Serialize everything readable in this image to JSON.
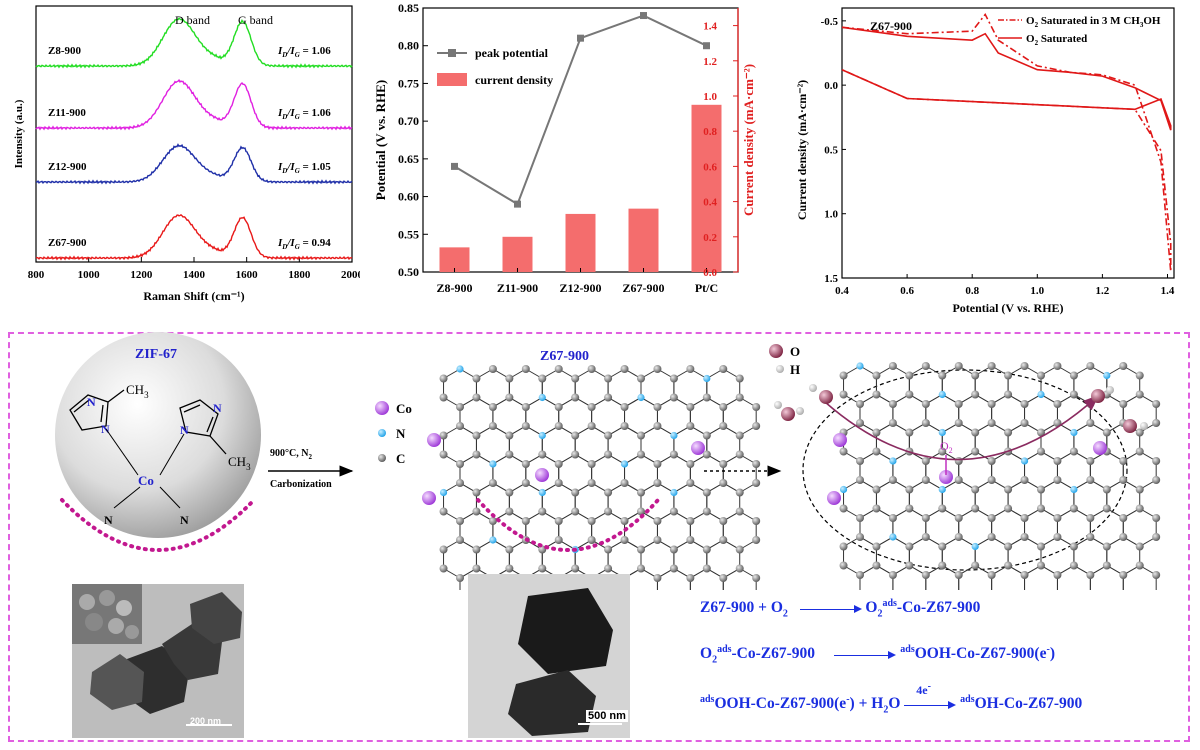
{
  "raman": {
    "xlabel": "Raman Shift  (cm⁻¹)",
    "ylabel": "Intensity  (a.u.)",
    "x_ticks": [
      "800",
      "1000",
      "1200",
      "1400",
      "1600",
      "1800",
      "2000"
    ],
    "d_band": "D band",
    "g_band": "G band",
    "samples": [
      {
        "name": "Z8-900",
        "ratio": "= 1.06",
        "color": "#22dd22"
      },
      {
        "name": "Z11-900",
        "ratio": "= 1.06",
        "color": "#e020e0"
      },
      {
        "name": "Z12-900",
        "ratio": "= 1.05",
        "color": "#1f2fa8"
      },
      {
        "name": "Z67-900",
        "ratio": "= 0.94",
        "color": "#e81818"
      }
    ],
    "ratio_label_main": "I",
    "ratio_label_d": "D",
    "ratio_label_sep": "/I",
    "ratio_label_g": "G"
  },
  "chart_data": [
    {
      "type": "bar",
      "title": "",
      "categories": [
        "Z8-900",
        "Z11-900",
        "Z12-900",
        "Z67-900",
        "Pt/C"
      ],
      "series": [
        {
          "name": "peak potential",
          "type": "line",
          "axis": "left",
          "values": [
            0.64,
            0.59,
            0.81,
            0.84,
            0.8
          ]
        },
        {
          "name": "current density",
          "type": "bar",
          "axis": "right",
          "values": [
            0.14,
            0.2,
            0.33,
            0.36,
            0.95
          ]
        }
      ],
      "ylabel_left": "Potential (V vs. RHE)",
      "ylabel_right": "Current density (mA·cm⁻²)",
      "ylim_left": [
        0.5,
        0.85
      ],
      "ylim_right": [
        0,
        1.5
      ],
      "yticks_left": [
        "0.50",
        "0.55",
        "0.60",
        "0.65",
        "0.70",
        "0.75",
        "0.80",
        "0.85"
      ],
      "yticks_right": [
        "0.0",
        "0.2",
        "0.4",
        "0.6",
        "0.8",
        "1.0",
        "1.2",
        "1.4"
      ]
    },
    {
      "type": "line",
      "title": "Z67-900",
      "xlabel": "Potential  (V vs. RHE)",
      "ylabel": "Current density  (mA·cm⁻²)",
      "xlim": [
        0.4,
        1.42
      ],
      "ylim": [
        -0.6,
        1.5
      ],
      "xticks": [
        "0.4",
        "0.6",
        "0.8",
        "1.0",
        "1.2",
        "1.4"
      ],
      "yticks": [
        "-0.5",
        "0.0",
        "0.5",
        "1.0",
        "1.5"
      ],
      "series": [
        {
          "name": "O₂ Saturated in 3 M CH₃OH",
          "style": "dashdot",
          "x": [
            0.4,
            0.6,
            0.8,
            0.84,
            0.88,
            1.0,
            1.1,
            1.2,
            1.3,
            1.38,
            1.41
          ],
          "y": [
            -0.45,
            -0.4,
            -0.42,
            -0.55,
            -0.35,
            -0.15,
            -0.1,
            -0.08,
            0.0,
            0.6,
            1.45
          ]
        },
        {
          "name": "O₂ Saturated",
          "style": "solid",
          "x": [
            0.4,
            0.6,
            0.8,
            0.84,
            0.88,
            1.0,
            1.1,
            1.2,
            1.3,
            1.38,
            1.41
          ],
          "y": [
            -0.45,
            -0.38,
            -0.35,
            -0.4,
            -0.25,
            -0.12,
            -0.1,
            -0.07,
            0.02,
            0.12,
            0.35
          ]
        }
      ]
    }
  ],
  "cv": {
    "legend_1_a": "O",
    "legend_1_b": " Saturated in 3 M CH",
    "legend_1_c": "OH",
    "legend_2_a": "O",
    "legend_2_b": " Saturated"
  },
  "scheme": {
    "zif_label": "ZIF-67",
    "co": "Co",
    "n": "N",
    "ch3": "CH",
    "three": "3",
    "condition": "900°C, N",
    "two": "2",
    "carbonization": "Carbonization",
    "z67_label": "Z67-900",
    "legend_co": "Co",
    "legend_n": "N",
    "legend_c": "C",
    "legend_o": "O",
    "legend_h": "H",
    "o2": "O",
    "scale_200": "200 nm",
    "scale_500": "500 nm"
  },
  "equations": {
    "eq1_a": "Z67-900  +  O",
    "eq1_sub": "2",
    "eq1_b": "O",
    "eq1_b_sub": "2",
    "eq1_b_sup": "ads",
    "eq1_c": "-Co-Z67-900",
    "eq2_a": "O",
    "eq2_a_sub": "2",
    "eq2_a_sup": "ads",
    "eq2_b": "-Co-Z67-900",
    "eq2_c_sup": "ads",
    "eq2_c": "OOH-Co-Z67-900(e",
    "eq2_c_sup2": "-",
    "eq2_c_end": ")",
    "eq3_a_sup": "ads",
    "eq3_a": "OOH-Co-Z67-900(e",
    "eq3_a_sup2": "-",
    "eq3_a_end": ")  +  H",
    "eq3_sub": "2",
    "eq3_b": "O",
    "eq3_arrow": "4e",
    "eq3_arrow_sup": "-",
    "eq3_c_sup": "ads",
    "eq3_c": "OH-Co-Z67-900"
  }
}
